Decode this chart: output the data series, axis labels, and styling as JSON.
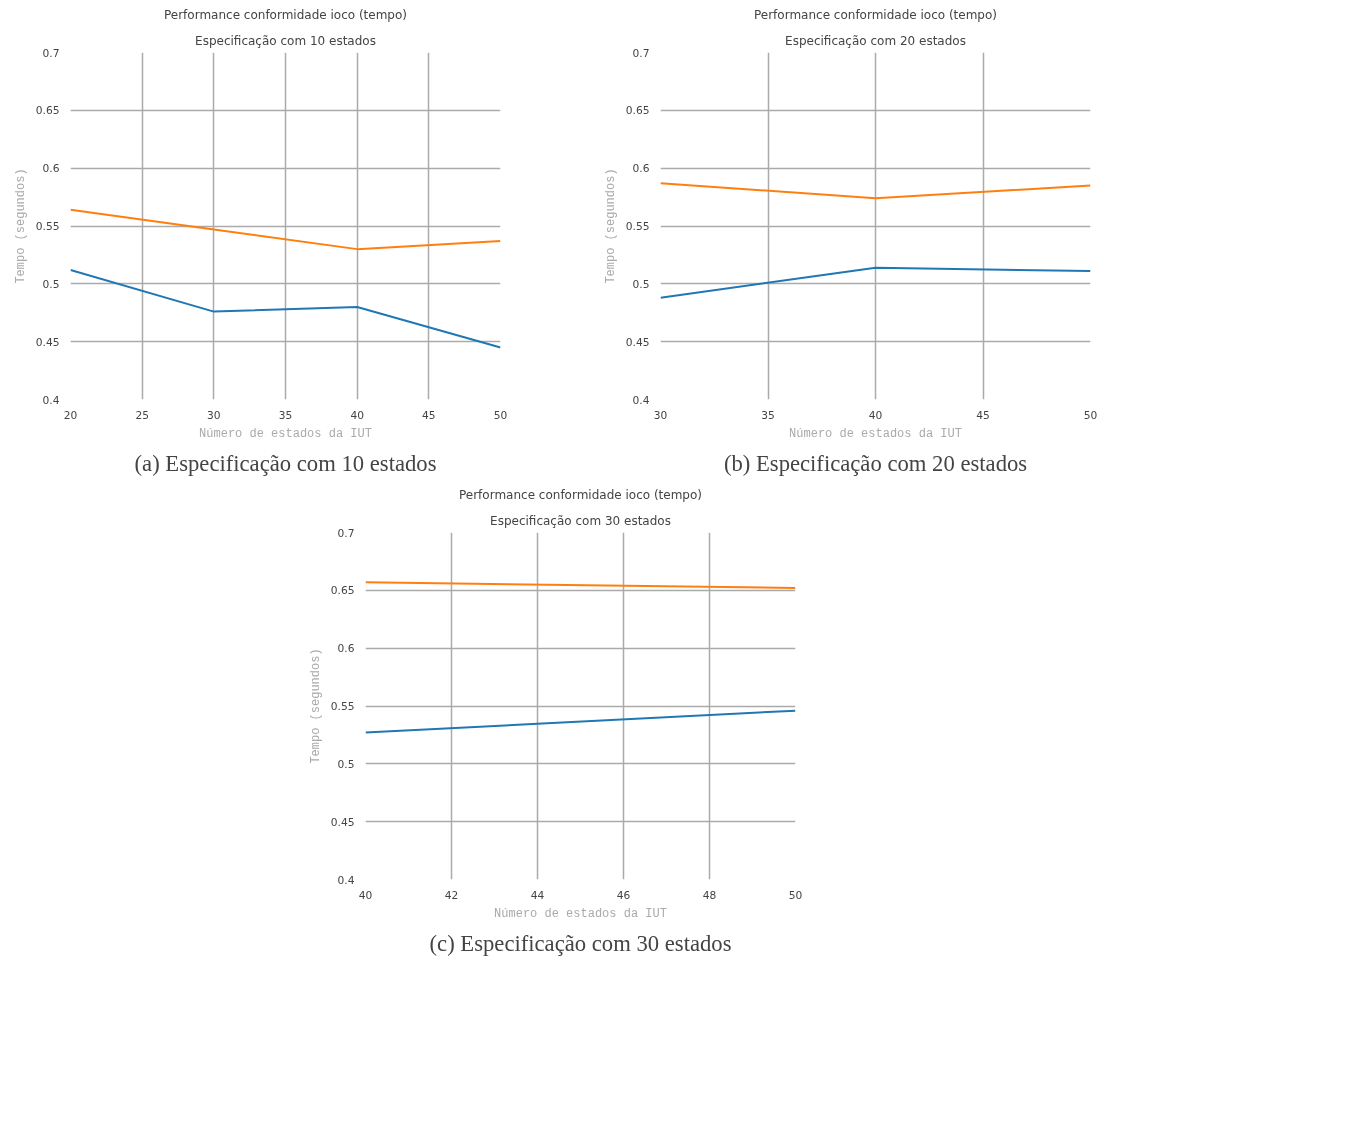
{
  "chart_data": [
    {
      "type": "line",
      "title": "Performance conformidade ioco (tempo)",
      "subtitle": "Especificação com 10 estados",
      "xlabel": "Número de estados da IUT",
      "ylabel": "Tempo (segundos)",
      "x": [
        20,
        30,
        40,
        50
      ],
      "series": [
        {
          "color": "#1f77b4",
          "values": [
            0.512,
            0.476,
            0.48,
            0.445
          ]
        },
        {
          "color": "#ff7f0e",
          "values": [
            0.564,
            0.547,
            0.53,
            0.537
          ]
        }
      ],
      "xlim": [
        20,
        50
      ],
      "xticks": [
        20,
        25,
        30,
        35,
        40,
        45,
        50
      ],
      "ylim": [
        0.4,
        0.7
      ],
      "yticks": [
        0.4,
        0.45,
        0.5,
        0.55,
        0.6,
        0.65,
        0.7
      ],
      "grid": true,
      "annotations": [
        "(a) Especificação com 10 estados"
      ]
    },
    {
      "type": "line",
      "title": "Performance conformidade ioco (tempo)",
      "subtitle": "Especificação com 20 estados",
      "xlabel": "Número de estados da IUT",
      "ylabel": "Tempo (segundos)",
      "x": [
        30,
        40,
        50
      ],
      "series": [
        {
          "color": "#1f77b4",
          "values": [
            0.488,
            0.514,
            0.511
          ]
        },
        {
          "color": "#ff7f0e",
          "values": [
            0.587,
            0.574,
            0.585
          ]
        }
      ],
      "xlim": [
        30,
        50
      ],
      "xticks": [
        30,
        35,
        40,
        45,
        50
      ],
      "ylim": [
        0.4,
        0.7
      ],
      "yticks": [
        0.4,
        0.45,
        0.5,
        0.55,
        0.6,
        0.65,
        0.7
      ],
      "grid": true,
      "annotations": [
        "(b) Especificação com 20 estados"
      ]
    },
    {
      "type": "line",
      "title": "Performance conformidade ioco (tempo)",
      "subtitle": "Especificação com 30 estados",
      "xlabel": "Número de estados da IUT",
      "ylabel": "Tempo (segundos)",
      "x": [
        40,
        50
      ],
      "series": [
        {
          "color": "#1f77b4",
          "values": [
            0.527,
            0.546
          ]
        },
        {
          "color": "#ff7f0e",
          "values": [
            0.657,
            0.652
          ]
        }
      ],
      "xlim": [
        40,
        50
      ],
      "xticks": [
        40,
        42,
        44,
        46,
        48,
        50
      ],
      "ylim": [
        0.4,
        0.7
      ],
      "yticks": [
        0.4,
        0.45,
        0.5,
        0.55,
        0.6,
        0.65,
        0.7
      ],
      "grid": true,
      "annotations": [
        "(c) Especificação com 30 estados"
      ]
    }
  ]
}
